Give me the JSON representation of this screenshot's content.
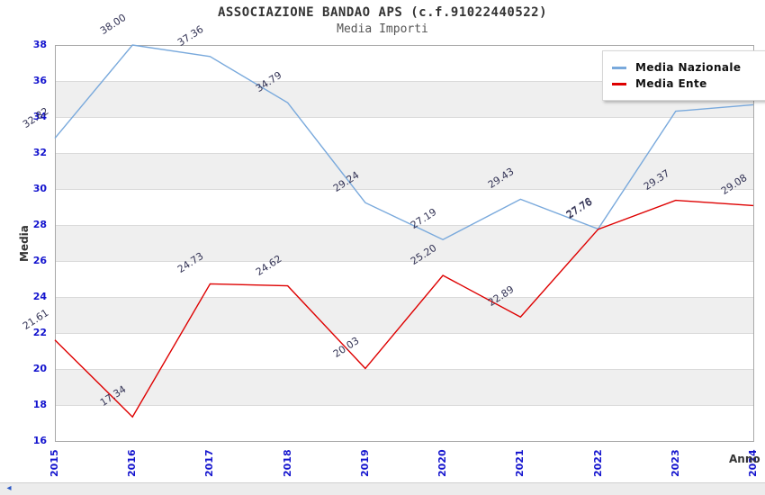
{
  "chart_data": {
    "type": "line",
    "title": "ASSOCIAZIONE BANDAO APS (c.f.91022440522)",
    "subtitle": "Media Importi",
    "xlabel": "Anno",
    "ylabel": "Media",
    "categories": [
      "2015",
      "2016",
      "2017",
      "2018",
      "2019",
      "2020",
      "2021",
      "2022",
      "2023",
      "2024"
    ],
    "series": [
      {
        "name": "Media Nazionale",
        "color": "#79a9dc",
        "values": [
          32.82,
          38.0,
          37.36,
          34.79,
          29.24,
          27.19,
          29.43,
          27.78,
          34.32,
          34.68
        ]
      },
      {
        "name": "Media Ente",
        "color": "#de0000",
        "values": [
          21.61,
          17.34,
          24.73,
          24.62,
          20.03,
          25.2,
          22.89,
          27.76,
          29.37,
          29.08
        ]
      }
    ],
    "ylim": [
      16,
      38
    ],
    "y_tick_step": 2,
    "grid": true,
    "legend_position": "top-right",
    "band_colors": [
      "#ffffff",
      "#efefef"
    ],
    "tick_label_color": "#1414ce",
    "data_label_color": "#333355"
  },
  "footer": {
    "scroll_left_icon": "◂"
  }
}
